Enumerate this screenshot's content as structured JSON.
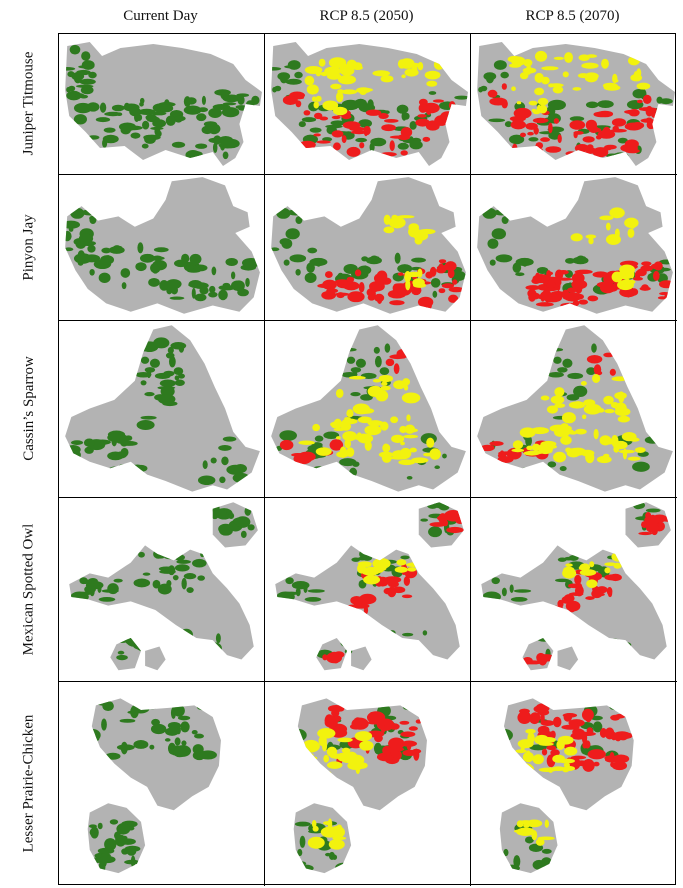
{
  "columns": [
    "Current Day",
    "RCP 8.5 (2050)",
    "RCP 8.5 (2070)"
  ],
  "rows": [
    {
      "label": "Juniper Titmouse"
    },
    {
      "label": "Pinyon Jay"
    },
    {
      "label": "Cassin’s Sparrow"
    },
    {
      "label": "Mexican Spotted Owl"
    },
    {
      "label": "Lesser Prairie-Chicken"
    }
  ],
  "colors": {
    "range": "#b3b3b3",
    "stable": "#2e7a1f",
    "loss": "#ee1c1c",
    "gain": "#f2f20e"
  }
}
